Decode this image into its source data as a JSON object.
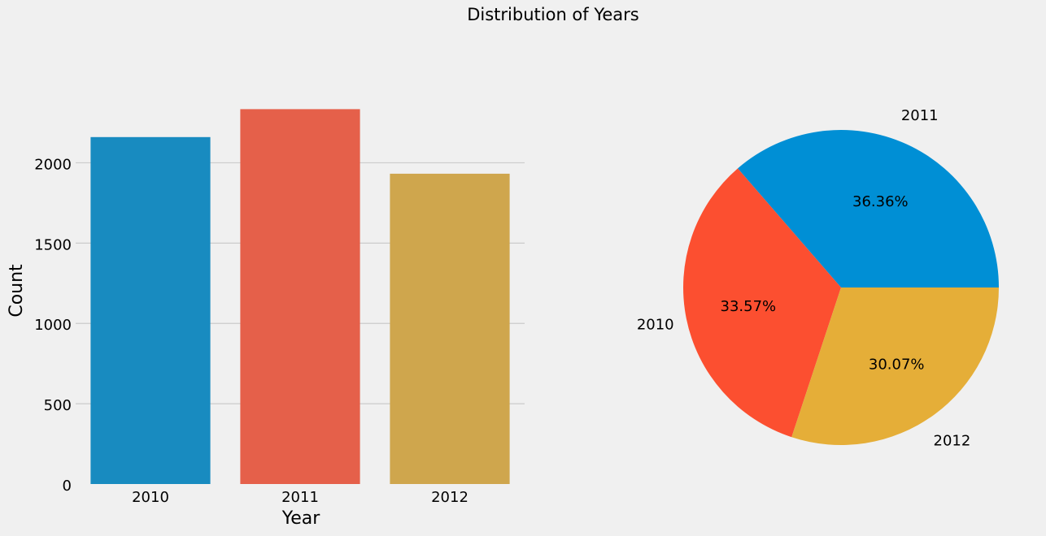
{
  "suptitle": "Distribution of Years",
  "colors": {
    "background": "#f0f0f0",
    "grid": "#cbcbcb",
    "text": "#000000"
  },
  "chart_data": [
    {
      "type": "bar",
      "categories": [
        "2010",
        "2011",
        "2012"
      ],
      "values": [
        2160,
        2334,
        1932
      ],
      "colors": [
        "#188bc0",
        "#e5604a",
        "#cfa64d"
      ],
      "xlabel": "Year",
      "ylabel": "Count",
      "ylim": [
        0,
        2336
      ],
      "yticks": [
        0,
        500,
        1000,
        1500,
        2000
      ],
      "grid": "horizontal"
    },
    {
      "type": "pie",
      "labels": [
        "2011",
        "2010",
        "2012"
      ],
      "values": [
        36.36,
        33.57,
        30.07
      ],
      "pct_labels": [
        "36.36%",
        "33.57%",
        "30.07%"
      ],
      "colors": [
        "#008fd5",
        "#fc4f30",
        "#e5ae38"
      ],
      "startangle_deg": 0,
      "direction": "counterclockwise"
    }
  ]
}
